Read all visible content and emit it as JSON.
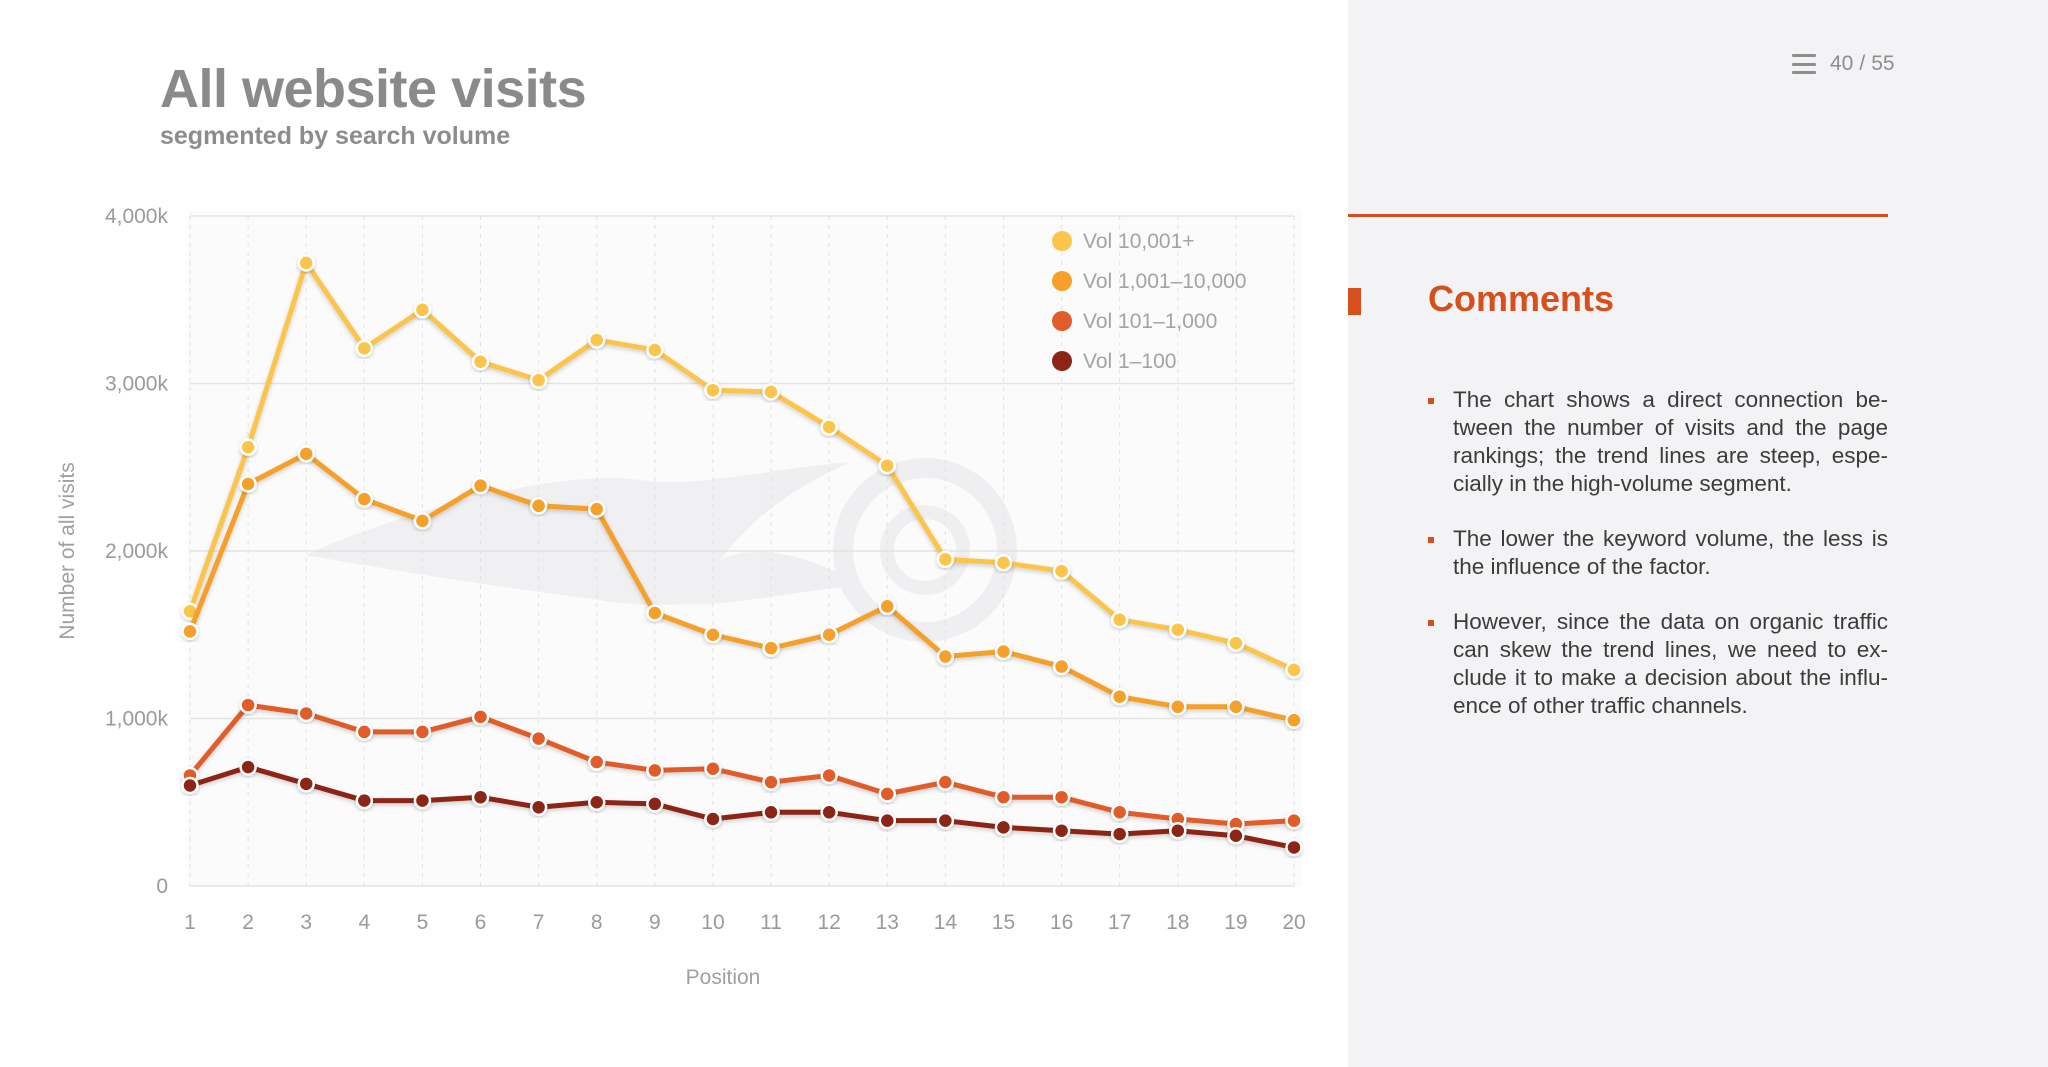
{
  "header": {
    "title": "All website visits",
    "subtitle": "segmented by search volume"
  },
  "nav": {
    "menu_icon": "hamburger-icon",
    "current_page": "40",
    "separator": "/",
    "total_pages": "55"
  },
  "comments": {
    "title": "Comments",
    "items": [
      "The chart shows a direct connection be-tween the number of visits and the page rankings; the trend lines are steep, espe-cially in the high-volume segment.",
      "The lower the keyword volume, the less is the influence of the factor.",
      "However, since the data on organic traffic can skew the trend lines, we need to ex-clude it to make a decision about the influ-ence of other traffic channels."
    ]
  },
  "colors": {
    "accent": "#d6501e",
    "vol_high": "#fbc54b",
    "vol_mid_high": "#f5a02a",
    "vol_mid_low": "#e05d2a",
    "vol_low": "#8b2516"
  },
  "chart_data": {
    "type": "line",
    "title": "All website visits",
    "subtitle": "segmented by search volume",
    "xlabel": "Position",
    "ylabel": "Number of all visits",
    "x": [
      1,
      2,
      3,
      4,
      5,
      6,
      7,
      8,
      9,
      10,
      11,
      12,
      13,
      14,
      15,
      16,
      17,
      18,
      19,
      20
    ],
    "ylim": [
      0,
      4000
    ],
    "yticks": [
      0,
      1000,
      2000,
      3000,
      4000
    ],
    "ytick_labels": [
      "0",
      "1,000k",
      "2,000k",
      "3,000k",
      "4,000k"
    ],
    "grid": true,
    "legend_position": "top-right",
    "series": [
      {
        "name": "Vol 10,001+",
        "color": "#fbc54b",
        "values": [
          1640,
          2620,
          3720,
          3210,
          3440,
          3130,
          3020,
          3260,
          3200,
          2960,
          2950,
          2740,
          2510,
          1950,
          1930,
          1880,
          1590,
          1530,
          1450,
          1290
        ]
      },
      {
        "name": "Vol 1,001–10,000",
        "color": "#f5a02a",
        "values": [
          1520,
          2400,
          2580,
          2310,
          2180,
          2390,
          2270,
          2250,
          1630,
          1500,
          1420,
          1500,
          1670,
          1370,
          1400,
          1310,
          1130,
          1070,
          1070,
          990
        ]
      },
      {
        "name": "Vol 101–1,000",
        "color": "#e05d2a",
        "values": [
          660,
          1080,
          1030,
          920,
          920,
          1010,
          880,
          740,
          690,
          700,
          620,
          660,
          550,
          620,
          530,
          530,
          440,
          400,
          370,
          390
        ]
      },
      {
        "name": "Vol 1–100",
        "color": "#8b2516",
        "values": [
          600,
          710,
          610,
          510,
          510,
          530,
          470,
          500,
          490,
          400,
          440,
          440,
          390,
          390,
          350,
          330,
          310,
          330,
          300,
          230
        ]
      }
    ]
  }
}
